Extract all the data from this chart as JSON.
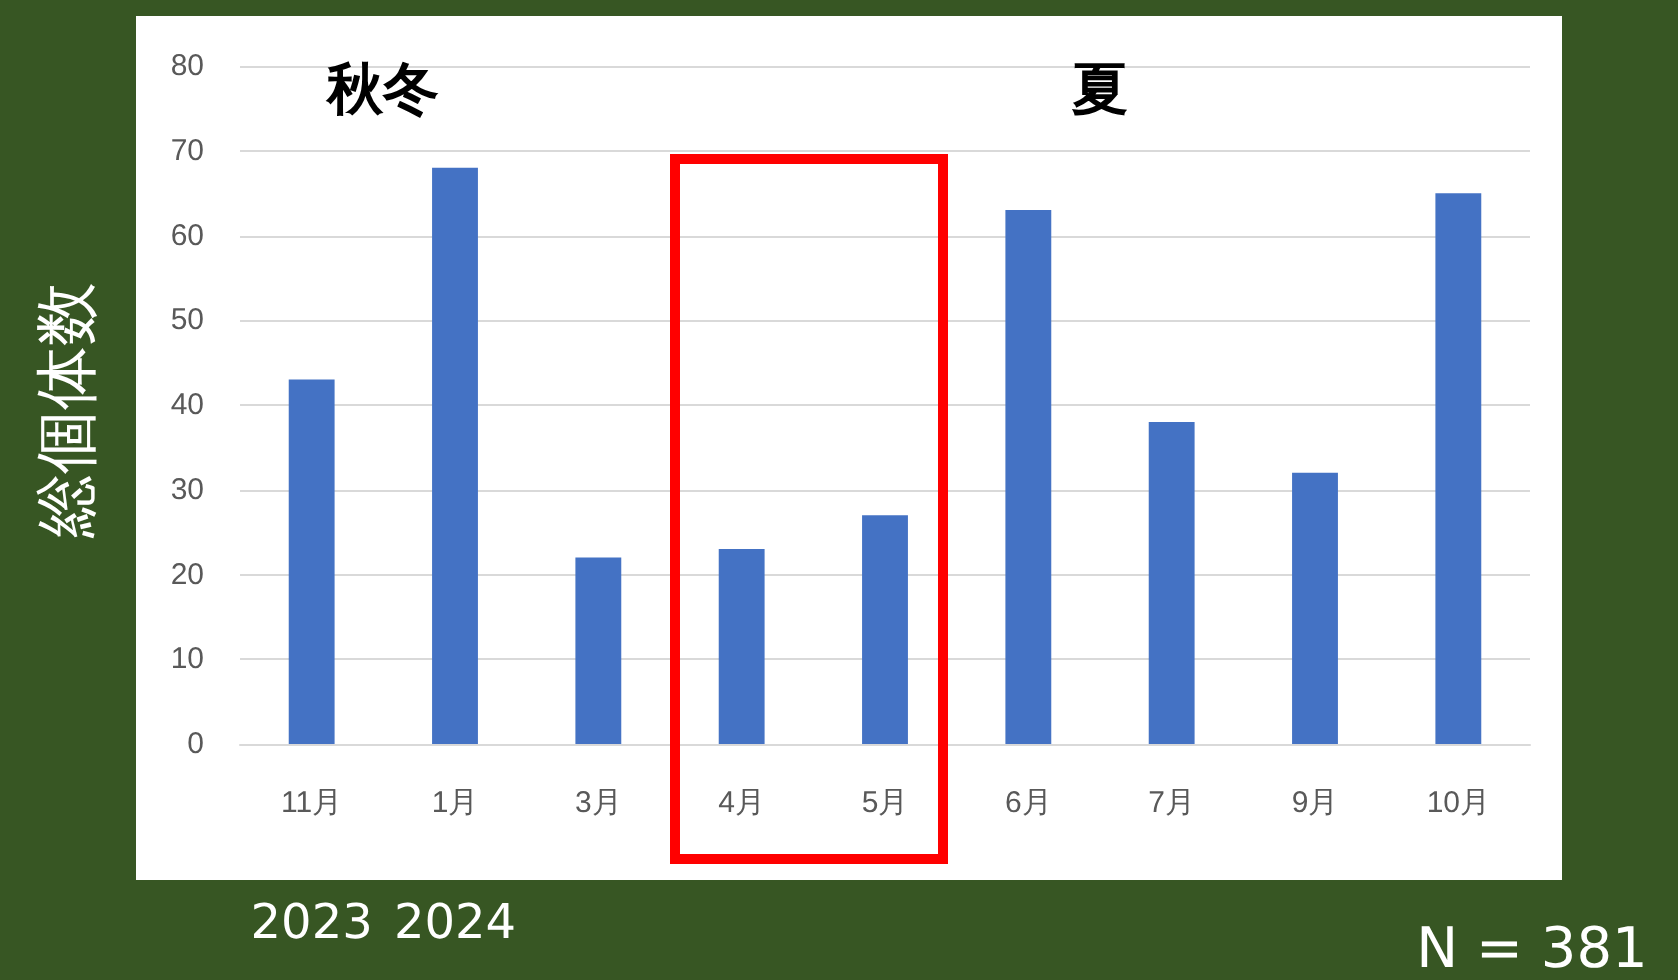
{
  "chart_data": {
    "type": "bar",
    "ylabel": "総個体数",
    "categories": [
      "11月",
      "1月",
      "3月",
      "4月",
      "5月",
      "6月",
      "7月",
      "9月",
      "10月"
    ],
    "values": [
      43,
      68,
      22,
      23,
      27,
      63,
      38,
      32,
      65
    ],
    "color": "#4472c4",
    "ylim": [
      0,
      80
    ],
    "yticks": [
      0,
      10,
      20,
      30,
      40,
      50,
      60,
      70,
      80
    ],
    "grid": "y",
    "annotations": [
      "秋冬",
      "夏",
      "2023",
      "2024",
      "N = 381"
    ]
  }
}
